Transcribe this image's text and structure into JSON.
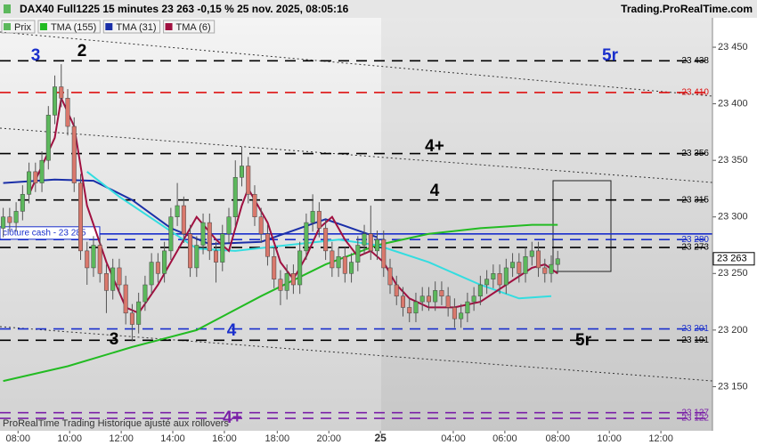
{
  "header": {
    "title": "DAX40 Full1225 15 minutes 23 263 -0,15 % 25 nov. 2025, 08:05:16",
    "site": "Trading.ProRealTime.com"
  },
  "footer": "ProRealTime Trading  Historique ajusté aux rollovers",
  "chart_data": {
    "type": "candlestick",
    "candles": {
      "name": "Prix",
      "up_color": "#5cb85c",
      "down_color": "#d9786c",
      "open": [
        23290,
        23300,
        23295,
        23305,
        23320,
        23340,
        23330,
        23350,
        23390,
        23415,
        23405,
        23380,
        23330,
        23270,
        23255,
        23275,
        23250,
        23235,
        23255,
        23240,
        23215,
        23205,
        23225,
        23240,
        23260,
        23250,
        23270,
        23300,
        23310,
        23285,
        23255,
        23275,
        23295,
        23270,
        23260,
        23285,
        23300,
        23335,
        23345,
        23320,
        23300,
        23285,
        23265,
        23245,
        23235,
        23250,
        23240,
        23270,
        23295,
        23305,
        23290,
        23270,
        23255,
        23265,
        23250,
        23260,
        23275,
        23285,
        23270,
        23280,
        23255,
        23240,
        23230,
        23220,
        23215,
        23225,
        23230,
        23225,
        23235,
        23230,
        23220,
        23210,
        23215,
        23225,
        23230,
        23240,
        23245,
        23250,
        23240,
        23255,
        23260,
        23250,
        23265,
        23270,
        23255,
        23250,
        23258
      ],
      "high": [
        23308,
        23308,
        23313,
        23328,
        23348,
        23348,
        23358,
        23398,
        23425,
        23435,
        23413,
        23388,
        23338,
        23278,
        23283,
        23283,
        23258,
        23263,
        23263,
        23248,
        23223,
        23233,
        23248,
        23268,
        23268,
        23278,
        23308,
        23330,
        23318,
        23293,
        23283,
        23303,
        23303,
        23278,
        23293,
        23308,
        23350,
        23362,
        23353,
        23328,
        23308,
        23293,
        23273,
        23253,
        23258,
        23258,
        23278,
        23303,
        23320,
        23313,
        23298,
        23278,
        23273,
        23273,
        23268,
        23283,
        23293,
        23310,
        23288,
        23288,
        23263,
        23248,
        23238,
        23228,
        23233,
        23238,
        23238,
        23243,
        23243,
        23238,
        23228,
        23223,
        23233,
        23238,
        23248,
        23253,
        23258,
        23258,
        23263,
        23268,
        23268,
        23273,
        23278,
        23278,
        23263,
        23266,
        23270
      ],
      "low": [
        23282,
        23287,
        23287,
        23297,
        23312,
        23322,
        23322,
        23342,
        23382,
        23397,
        23372,
        23322,
        23262,
        23240,
        23247,
        23242,
        23215,
        23227,
        23232,
        23205,
        23190,
        23197,
        23217,
        23232,
        23242,
        23242,
        23262,
        23292,
        23277,
        23247,
        23247,
        23267,
        23262,
        23242,
        23252,
        23277,
        23292,
        23327,
        23312,
        23292,
        23277,
        23257,
        23237,
        23222,
        23227,
        23232,
        23232,
        23262,
        23287,
        23282,
        23262,
        23247,
        23247,
        23242,
        23242,
        23252,
        23267,
        23262,
        23262,
        23247,
        23232,
        23222,
        23212,
        23207,
        23207,
        23217,
        23217,
        23217,
        23222,
        23212,
        23202,
        23202,
        23207,
        23217,
        23222,
        23232,
        23237,
        23232,
        23232,
        23247,
        23242,
        23242,
        23257,
        23247,
        23242,
        23242,
        23250
      ],
      "close": [
        23300,
        23295,
        23305,
        23320,
        23340,
        23330,
        23350,
        23390,
        23415,
        23405,
        23380,
        23330,
        23270,
        23255,
        23275,
        23250,
        23235,
        23255,
        23240,
        23215,
        23205,
        23225,
        23240,
        23260,
        23250,
        23270,
        23300,
        23310,
        23285,
        23255,
        23275,
        23295,
        23270,
        23260,
        23285,
        23300,
        23335,
        23345,
        23320,
        23300,
        23285,
        23265,
        23245,
        23235,
        23250,
        23240,
        23270,
        23295,
        23305,
        23290,
        23270,
        23255,
        23265,
        23250,
        23260,
        23275,
        23285,
        23270,
        23280,
        23255,
        23240,
        23230,
        23220,
        23215,
        23225,
        23230,
        23225,
        23235,
        23230,
        23220,
        23210,
        23215,
        23225,
        23230,
        23240,
        23245,
        23250,
        23240,
        23255,
        23260,
        23250,
        23265,
        23270,
        23255,
        23250,
        23258,
        23263
      ]
    },
    "series": [
      {
        "name": "TMA (155)",
        "color": "#22bb22",
        "x": [
          0,
          10,
          20,
          30,
          40,
          50,
          58,
          66,
          74,
          82,
          86
        ],
        "values": [
          23155,
          23168,
          23185,
          23200,
          23230,
          23258,
          23275,
          23285,
          23290,
          23293,
          23293
        ]
      },
      {
        "name": "TMA (31)",
        "color": "#1a2fa8",
        "x": [
          0,
          8,
          14,
          20,
          26,
          32,
          40,
          46,
          50,
          54,
          58
        ],
        "values": [
          23330,
          23333,
          23332,
          23315,
          23290,
          23276,
          23278,
          23290,
          23298,
          23290,
          23282
        ]
      },
      {
        "color": "#33dde0",
        "x": [
          13,
          18,
          24,
          30,
          36,
          44,
          52,
          58,
          66,
          74,
          80,
          85
        ],
        "values": [
          23340,
          23318,
          23295,
          23272,
          23270,
          23275,
          23280,
          23275,
          23260,
          23240,
          23228,
          23230
        ]
      },
      {
        "name": "TMA (6)",
        "color": "#a01040",
        "x": [
          4,
          8,
          9,
          11,
          13,
          16,
          19,
          21,
          24,
          27,
          30,
          33,
          35,
          37,
          38,
          41,
          43,
          45,
          47,
          49,
          51,
          53,
          55,
          57,
          59,
          61,
          63,
          66,
          70,
          74,
          78,
          82,
          84,
          86
        ],
        "values": [
          23320,
          23370,
          23405,
          23380,
          23310,
          23260,
          23220,
          23215,
          23240,
          23270,
          23300,
          23280,
          23270,
          23310,
          23325,
          23295,
          23260,
          23245,
          23265,
          23290,
          23300,
          23280,
          23265,
          23270,
          23260,
          23240,
          23228,
          23220,
          23220,
          23225,
          23240,
          23255,
          23258,
          23250
        ]
      }
    ],
    "levels": [
      {
        "value": 23438,
        "label": "23 438",
        "color": "#000000"
      },
      {
        "value": 23410,
        "label": "23 410",
        "color": "#dd1111"
      },
      {
        "value": 23356,
        "label": "23 356",
        "color": "#000000"
      },
      {
        "value": 23315,
        "label": "23 315",
        "color": "#000000"
      },
      {
        "value": 23280,
        "label": "23 280",
        "color": "#1a2fcc"
      },
      {
        "value": 23273,
        "label": "23 273",
        "color": "#000000"
      },
      {
        "value": 23201,
        "label": "23 201",
        "color": "#1a2fcc"
      },
      {
        "value": 23191,
        "label": "23 191",
        "color": "#000000"
      },
      {
        "value": 23127,
        "label": "23 127",
        "color": "#7a1fa8"
      },
      {
        "value": 23122,
        "label": "23 122",
        "color": "#7a1fa8"
      }
    ],
    "cash_close": {
      "value": 23285,
      "label": "clôture cash - 23 285",
      "color": "#1a2fcc"
    },
    "last_price": {
      "value": 23263,
      "label": "23 263"
    },
    "annotations": [
      {
        "text": "3",
        "color": "#1a2fcc"
      },
      {
        "text": "2",
        "color": "#000000"
      },
      {
        "text": "5r",
        "color": "#1a2fcc"
      },
      {
        "text": "4+",
        "color": "#000000"
      },
      {
        "text": "4",
        "color": "#000000"
      },
      {
        "text": "3",
        "color": "#000000"
      },
      {
        "text": "4",
        "color": "#1a2fcc"
      },
      {
        "text": "5r",
        "color": "#000000"
      },
      {
        "text": "4+",
        "color": "#7a1fa8"
      }
    ],
    "xlim": [
      -0.5,
      110
    ],
    "ylim": [
      23111,
      23476
    ],
    "xticks": [
      {
        "value": 2.3,
        "label": "08:00"
      },
      {
        "value": 10.3,
        "label": "10:00"
      },
      {
        "value": 18.3,
        "label": "12:00"
      },
      {
        "value": 26.3,
        "label": "14:00"
      },
      {
        "value": 34.3,
        "label": "16:00"
      },
      {
        "value": 42.5,
        "label": "18:00"
      },
      {
        "value": 50.5,
        "label": "20:00"
      },
      {
        "value": 58.5,
        "label": "25"
      },
      {
        "value": 69.8,
        "label": "04:00"
      },
      {
        "value": 77.8,
        "label": "06:00"
      },
      {
        "value": 86,
        "label": "08:00"
      },
      {
        "value": 94,
        "label": "10:00"
      },
      {
        "value": 102,
        "label": "12:00"
      }
    ],
    "yticks": [
      {
        "value": 23450,
        "label": "23 450"
      },
      {
        "value": 23400,
        "label": "23 400"
      },
      {
        "value": 23350,
        "label": "23 350"
      },
      {
        "value": 23300,
        "label": "23 300"
      },
      {
        "value": 23250,
        "label": "23 250"
      },
      {
        "value": 23200,
        "label": "23 200"
      },
      {
        "value": 23150,
        "label": "23 150"
      }
    ]
  }
}
